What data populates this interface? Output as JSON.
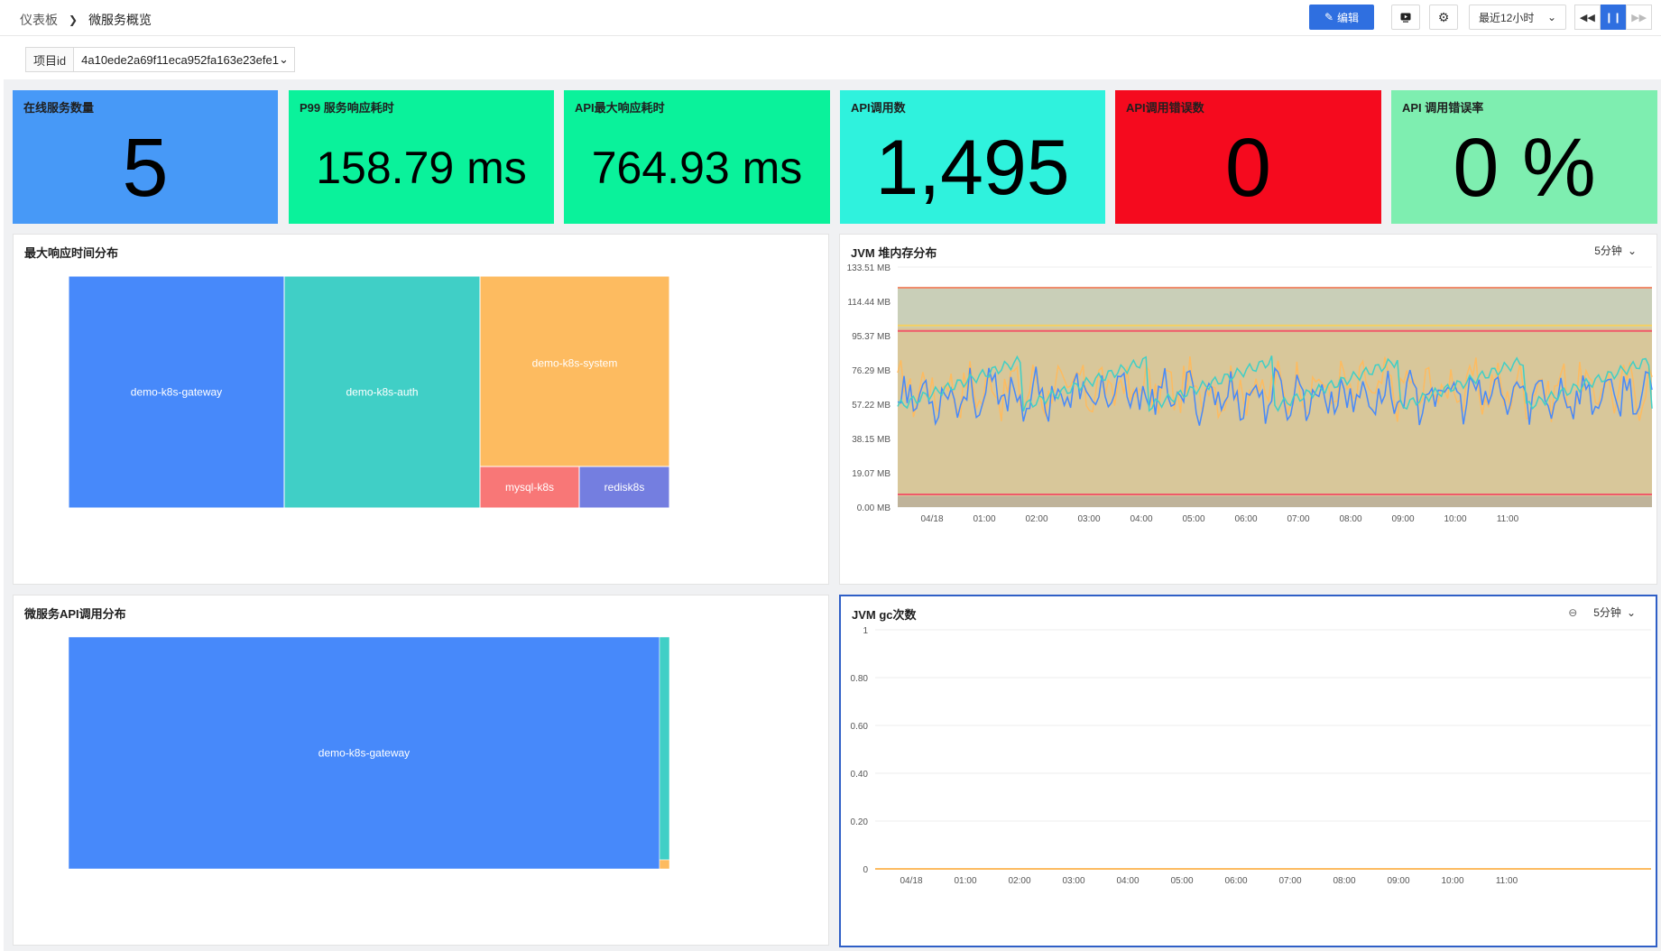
{
  "breadcrumb": {
    "root": "仪表板",
    "current": "微服务概览"
  },
  "toolbar": {
    "edit_label": "编辑",
    "time_range": "最近12小时"
  },
  "filter": {
    "label": "项目id",
    "value": "4a10ede2a69f11eca952fa163e23efe1"
  },
  "stats": [
    {
      "title": "在线服务数量",
      "value": "5",
      "color": "#4799f7"
    },
    {
      "title": "P99 服务响应耗时",
      "value": "158.79 ms",
      "color": "#0af29b"
    },
    {
      "title": "API最大响应耗时",
      "value": "764.93 ms",
      "color": "#0af29b"
    },
    {
      "title": "API调用数",
      "value": "1,495",
      "color": "#2ff2dd"
    },
    {
      "title": "API调用错误数",
      "value": "0",
      "color": "#f50a1e"
    },
    {
      "title": "API 调用错误率",
      "value": "0 %",
      "color": "#7eeeb0"
    }
  ],
  "panels": {
    "max_resp": {
      "title": "最大响应时间分布"
    },
    "jvm_heap": {
      "title": "JVM 堆内存分布",
      "interval": "5分钟"
    },
    "api_calls": {
      "title": "微服务API调用分布"
    },
    "jvm_gc": {
      "title": "JVM gc次数",
      "interval": "5分钟"
    }
  },
  "chart_data": [
    {
      "type": "treemap",
      "items": [
        {
          "label": "demo-k8s-gateway",
          "color": "#4789fa"
        },
        {
          "label": "demo-k8s-auth",
          "color": "#40cfc6"
        },
        {
          "label": "demo-k8s-system",
          "color": "#fdbb60"
        },
        {
          "label": "mysql-k8s",
          "color": "#f87777"
        },
        {
          "label": "redisk8s",
          "color": "#747ee0"
        }
      ]
    },
    {
      "type": "line",
      "y_ticks": [
        "133.51 MB",
        "114.44 MB",
        "95.37 MB",
        "76.29 MB",
        "57.22 MB",
        "38.15 MB",
        "19.07 MB",
        "0.00 MB"
      ],
      "x_ticks": [
        "04/18",
        "01:00",
        "02:00",
        "03:00",
        "04:00",
        "05:00",
        "06:00",
        "07:00",
        "08:00",
        "09:00",
        "10:00",
        "11:00"
      ],
      "ylim": [
        0,
        133.51
      ]
    },
    {
      "type": "treemap",
      "items": [
        {
          "label": "demo-k8s-gateway",
          "color": "#4789fa"
        },
        {
          "label": "",
          "color": "#40cfc6"
        },
        {
          "label": "",
          "color": "#fdbb60"
        }
      ]
    },
    {
      "type": "line",
      "y_ticks": [
        "1",
        "0.80",
        "0.60",
        "0.40",
        "0.20",
        "0"
      ],
      "x_ticks": [
        "04/18",
        "01:00",
        "02:00",
        "03:00",
        "04:00",
        "05:00",
        "06:00",
        "07:00",
        "08:00",
        "09:00",
        "10:00",
        "11:00"
      ],
      "ylim": [
        0,
        1
      ],
      "series": [
        {
          "values": [
            0,
            0,
            0,
            0,
            0,
            0,
            0,
            0,
            0,
            0,
            0,
            0
          ],
          "color": "#fdbb60"
        }
      ]
    }
  ]
}
